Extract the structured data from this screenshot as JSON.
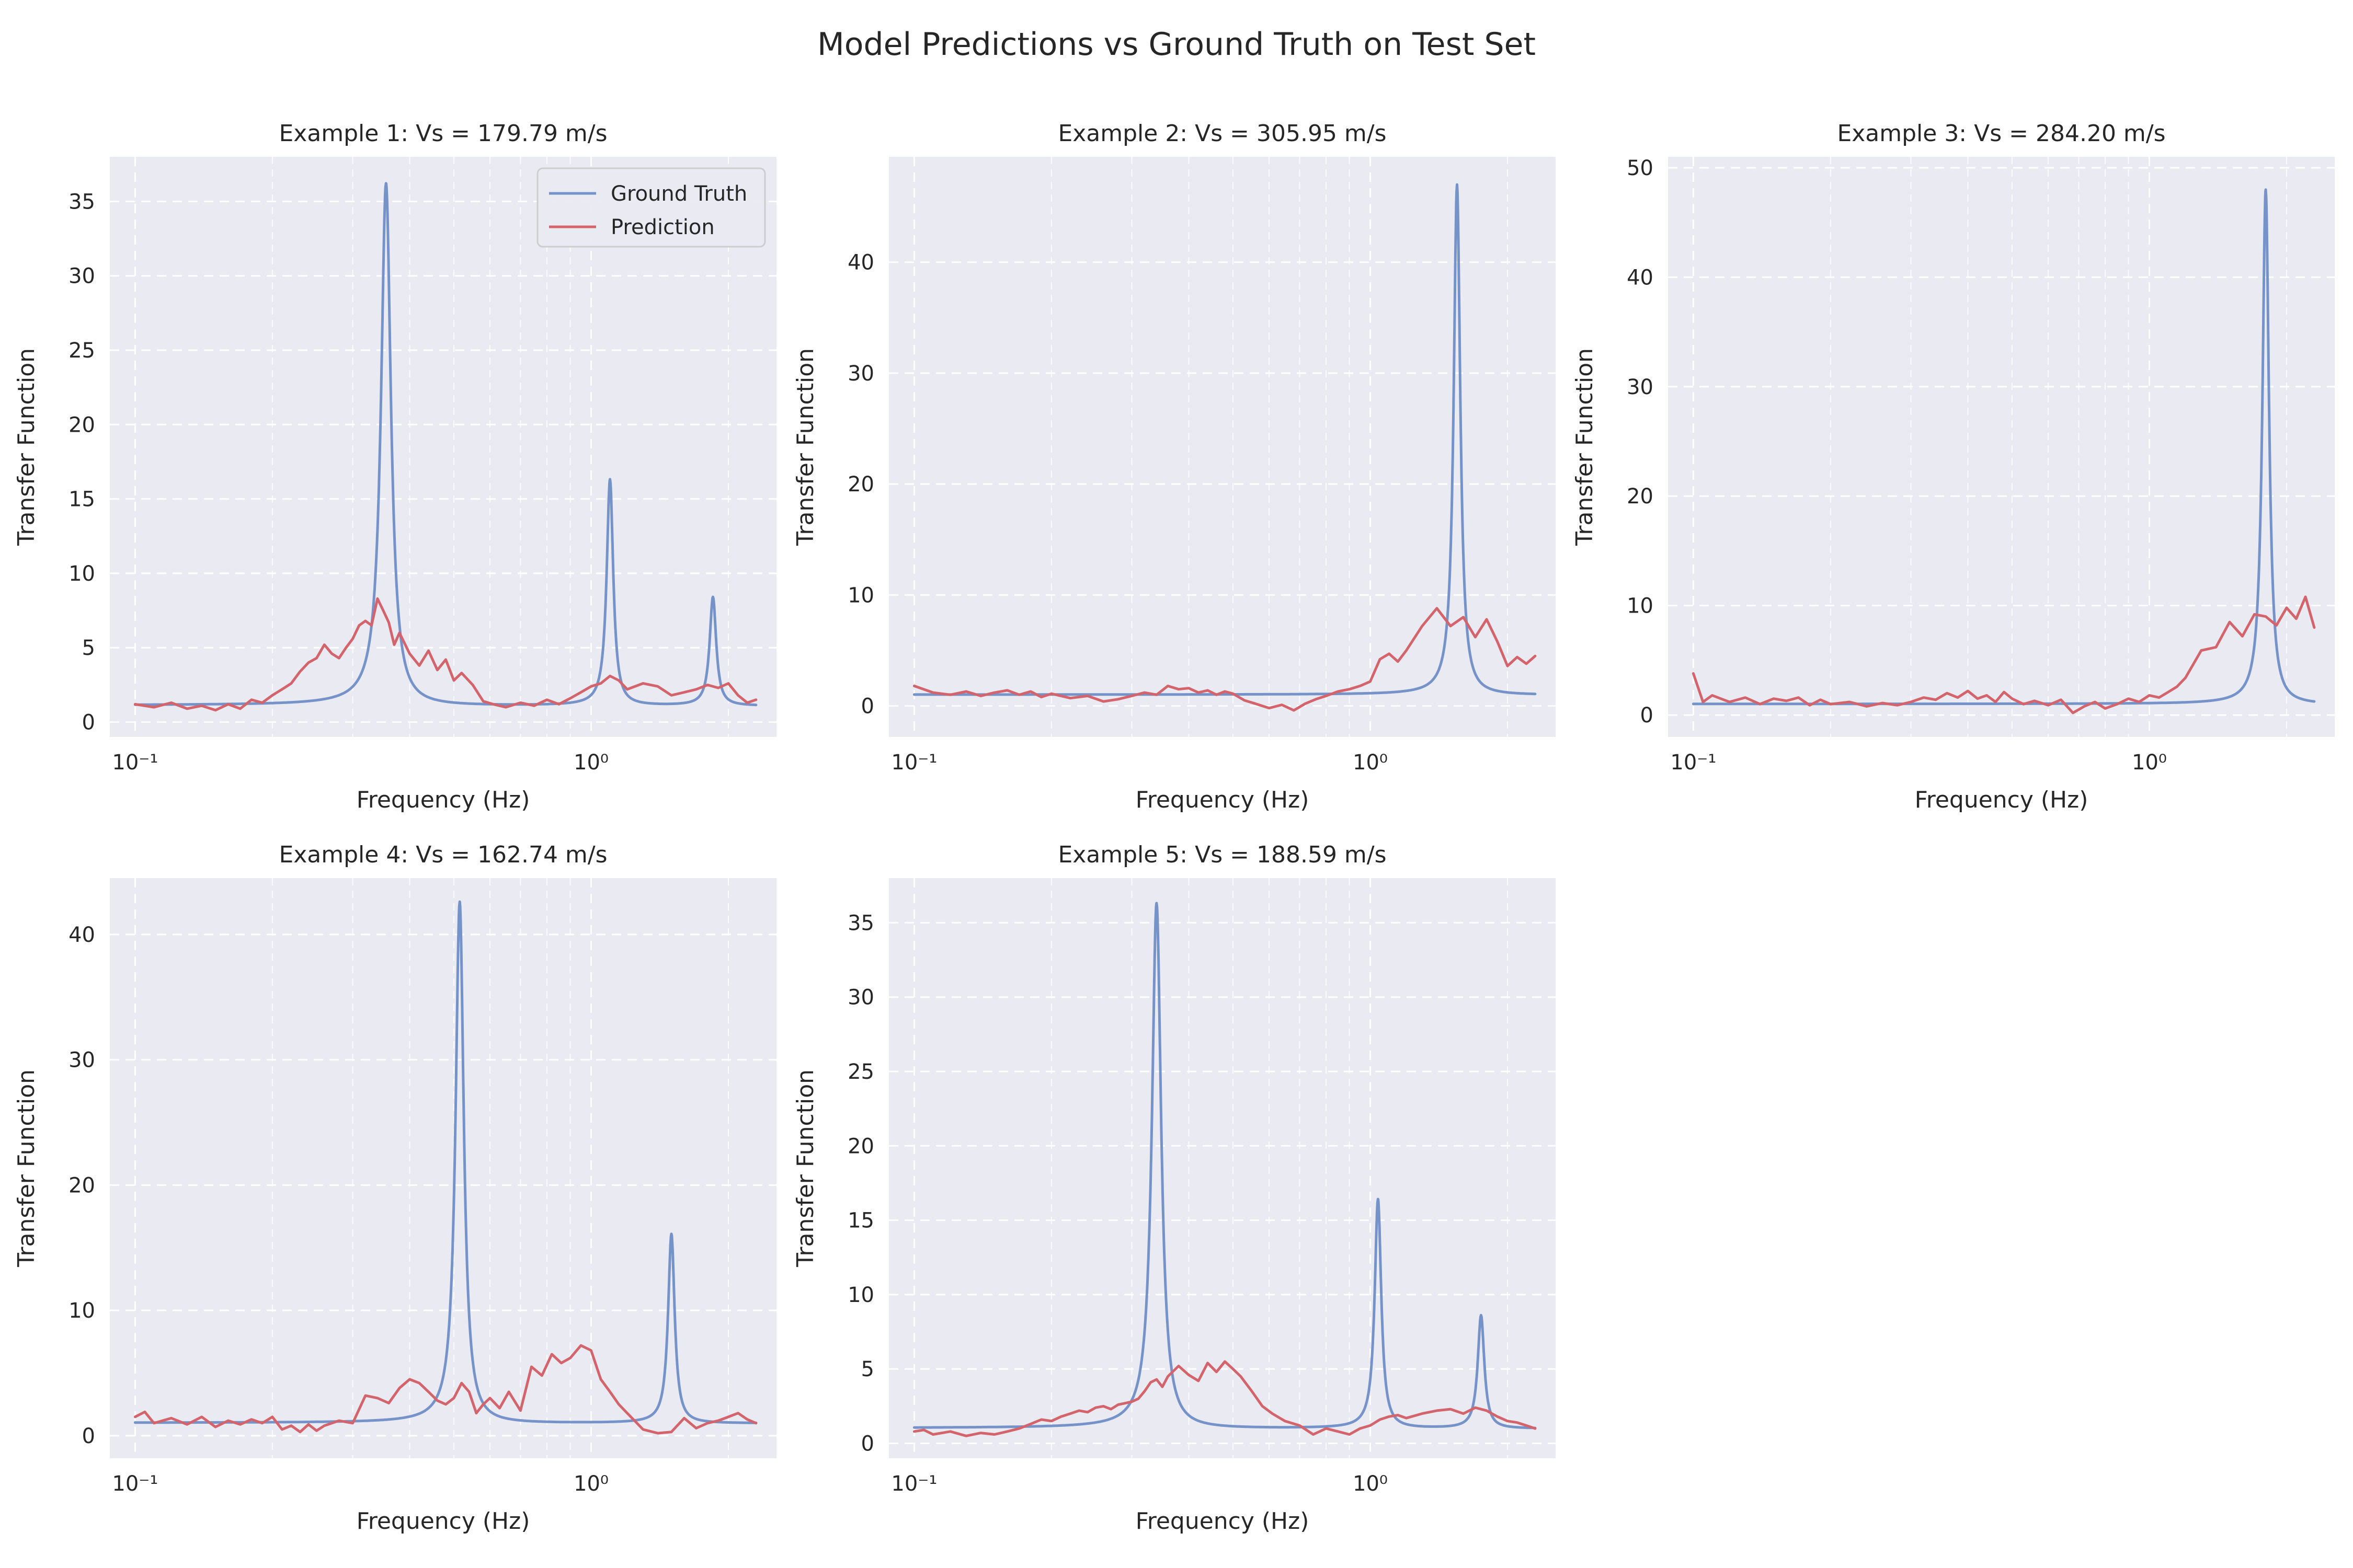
{
  "figure": {
    "suptitle": "Model Predictions vs Ground Truth on Test Set"
  },
  "colors": {
    "ground_truth": "#7593c8",
    "prediction": "#d3646c"
  },
  "chart_data": [
    {
      "type": "line",
      "title": "Example 1: Vs = 179.79 m/s",
      "xlabel": "Frequency (Hz)",
      "ylabel": "Transfer Function",
      "xscale": "log",
      "xlim": [
        0.088,
        2.55
      ],
      "ylim": [
        -1,
        38
      ],
      "yticks": [
        0,
        5,
        10,
        15,
        20,
        25,
        30,
        35
      ],
      "xticks": [
        0.1,
        1
      ],
      "xtick_labels": [
        "10⁻¹",
        "10⁰"
      ],
      "legend": "top-right",
      "series": [
        {
          "name": "Ground Truth",
          "peaks": [
            [
              0.355,
              36.2,
              0.03
            ],
            [
              1.1,
              16.3,
              0.02
            ],
            [
              1.85,
              8.4,
              0.02
            ]
          ],
          "base": 1.1
        },
        {
          "name": "Prediction",
          "x": [
            0.1,
            0.11,
            0.12,
            0.13,
            0.14,
            0.15,
            0.16,
            0.17,
            0.18,
            0.19,
            0.2,
            0.21,
            0.22,
            0.23,
            0.24,
            0.25,
            0.26,
            0.27,
            0.28,
            0.29,
            0.3,
            0.31,
            0.32,
            0.33,
            0.34,
            0.35,
            0.36,
            0.37,
            0.38,
            0.4,
            0.42,
            0.44,
            0.46,
            0.48,
            0.5,
            0.52,
            0.55,
            0.58,
            0.61,
            0.65,
            0.7,
            0.75,
            0.8,
            0.85,
            0.9,
            0.95,
            1.0,
            1.05,
            1.1,
            1.15,
            1.2,
            1.3,
            1.4,
            1.5,
            1.6,
            1.7,
            1.8,
            1.9,
            2.0,
            2.1,
            2.2,
            2.3
          ],
          "y": [
            1.2,
            1.0,
            1.3,
            0.9,
            1.1,
            0.8,
            1.2,
            0.9,
            1.5,
            1.3,
            1.8,
            2.2,
            2.6,
            3.4,
            4.0,
            4.3,
            5.2,
            4.6,
            4.3,
            5.0,
            5.6,
            6.5,
            6.8,
            6.5,
            8.3,
            7.5,
            6.7,
            5.2,
            6.0,
            4.6,
            3.8,
            4.8,
            3.5,
            4.2,
            2.8,
            3.3,
            2.5,
            1.4,
            1.2,
            1.0,
            1.3,
            1.1,
            1.5,
            1.2,
            1.6,
            2.0,
            2.4,
            2.6,
            3.1,
            2.8,
            2.2,
            2.6,
            2.4,
            1.8,
            2.0,
            2.2,
            2.5,
            2.3,
            2.6,
            1.8,
            1.3,
            1.5
          ]
        }
      ]
    },
    {
      "type": "line",
      "title": "Example 2: Vs = 305.95 m/s",
      "xlabel": "Frequency (Hz)",
      "ylabel": "Transfer Function",
      "xscale": "log",
      "xlim": [
        0.088,
        2.55
      ],
      "ylim": [
        -2.8,
        49.5
      ],
      "yticks": [
        0,
        10,
        20,
        30,
        40
      ],
      "xticks": [
        0.1,
        1
      ],
      "xtick_labels": [
        "10⁻¹",
        "10⁰"
      ],
      "series": [
        {
          "name": "Ground Truth",
          "peaks": [
            [
              1.55,
              47.0,
              0.02
            ]
          ],
          "base": 1.0
        },
        {
          "name": "Prediction",
          "x": [
            0.1,
            0.11,
            0.12,
            0.13,
            0.14,
            0.15,
            0.16,
            0.17,
            0.18,
            0.19,
            0.2,
            0.22,
            0.24,
            0.26,
            0.28,
            0.3,
            0.32,
            0.34,
            0.36,
            0.38,
            0.4,
            0.42,
            0.44,
            0.46,
            0.48,
            0.5,
            0.53,
            0.56,
            0.6,
            0.64,
            0.68,
            0.72,
            0.76,
            0.8,
            0.85,
            0.9,
            0.95,
            1.0,
            1.05,
            1.1,
            1.15,
            1.2,
            1.3,
            1.4,
            1.5,
            1.6,
            1.7,
            1.8,
            1.9,
            2.0,
            2.1,
            2.2,
            2.3
          ],
          "y": [
            1.8,
            1.2,
            1.0,
            1.3,
            0.9,
            1.2,
            1.4,
            1.0,
            1.3,
            0.8,
            1.1,
            0.7,
            0.9,
            0.4,
            0.6,
            0.9,
            1.2,
            1.0,
            1.8,
            1.5,
            1.6,
            1.2,
            1.4,
            1.0,
            1.3,
            1.1,
            0.5,
            0.2,
            -0.2,
            0.1,
            -0.4,
            0.2,
            0.6,
            0.9,
            1.3,
            1.5,
            1.8,
            2.2,
            4.2,
            4.7,
            4.0,
            5.0,
            7.2,
            8.8,
            7.2,
            8.0,
            6.2,
            7.8,
            5.8,
            3.6,
            4.4,
            3.8,
            4.5
          ]
        }
      ]
    },
    {
      "type": "line",
      "title": "Example 3: Vs = 284.20 m/s",
      "xlabel": "Frequency (Hz)",
      "ylabel": "Transfer Function",
      "xscale": "log",
      "xlim": [
        0.088,
        2.55
      ],
      "ylim": [
        -2,
        51
      ],
      "yticks": [
        0,
        10,
        20,
        30,
        40,
        50
      ],
      "xticks": [
        0.1,
        1
      ],
      "xtick_labels": [
        "10⁻¹",
        "10⁰"
      ],
      "series": [
        {
          "name": "Ground Truth",
          "peaks": [
            [
              1.8,
              48.0,
              0.02
            ]
          ],
          "base": 1.0
        },
        {
          "name": "Prediction",
          "x": [
            0.1,
            0.105,
            0.11,
            0.12,
            0.13,
            0.14,
            0.15,
            0.16,
            0.17,
            0.18,
            0.19,
            0.2,
            0.22,
            0.24,
            0.26,
            0.28,
            0.3,
            0.32,
            0.34,
            0.36,
            0.38,
            0.4,
            0.42,
            0.44,
            0.46,
            0.48,
            0.5,
            0.53,
            0.56,
            0.6,
            0.64,
            0.68,
            0.72,
            0.76,
            0.8,
            0.85,
            0.9,
            0.95,
            1.0,
            1.05,
            1.1,
            1.15,
            1.2,
            1.3,
            1.4,
            1.5,
            1.6,
            1.7,
            1.8,
            1.9,
            2.0,
            2.1,
            2.2,
            2.3
          ],
          "y": [
            3.8,
            1.2,
            1.8,
            1.2,
            1.6,
            1.0,
            1.5,
            1.3,
            1.6,
            0.9,
            1.4,
            1.0,
            1.2,
            0.8,
            1.1,
            0.9,
            1.2,
            1.6,
            1.4,
            2.0,
            1.6,
            2.2,
            1.5,
            1.8,
            1.2,
            2.1,
            1.5,
            1.0,
            1.3,
            0.9,
            1.4,
            0.2,
            0.8,
            1.2,
            0.6,
            1.0,
            1.5,
            1.2,
            1.8,
            1.6,
            2.1,
            2.6,
            3.4,
            5.9,
            6.2,
            8.5,
            7.2,
            9.2,
            9.0,
            8.2,
            9.8,
            8.8,
            10.8,
            8.0
          ]
        }
      ]
    },
    {
      "type": "line",
      "title": "Example 4: Vs = 162.74 m/s",
      "xlabel": "Frequency (Hz)",
      "ylabel": "Transfer Function",
      "xscale": "log",
      "xlim": [
        0.088,
        2.55
      ],
      "ylim": [
        -1.8,
        44.5
      ],
      "yticks": [
        0,
        10,
        20,
        30,
        40
      ],
      "xticks": [
        0.1,
        1
      ],
      "xtick_labels": [
        "10⁻¹",
        "10⁰"
      ],
      "series": [
        {
          "name": "Ground Truth",
          "peaks": [
            [
              0.515,
              42.6,
              0.025
            ],
            [
              1.5,
              16.1,
              0.02
            ]
          ],
          "base": 1.0
        },
        {
          "name": "Prediction",
          "x": [
            0.1,
            0.105,
            0.11,
            0.12,
            0.13,
            0.14,
            0.15,
            0.16,
            0.17,
            0.18,
            0.19,
            0.2,
            0.21,
            0.22,
            0.23,
            0.24,
            0.25,
            0.26,
            0.28,
            0.3,
            0.32,
            0.34,
            0.36,
            0.38,
            0.4,
            0.42,
            0.44,
            0.46,
            0.48,
            0.5,
            0.52,
            0.54,
            0.56,
            0.58,
            0.6,
            0.63,
            0.66,
            0.7,
            0.74,
            0.78,
            0.82,
            0.86,
            0.9,
            0.95,
            1.0,
            1.05,
            1.1,
            1.15,
            1.2,
            1.3,
            1.4,
            1.5,
            1.6,
            1.7,
            1.8,
            1.9,
            2.0,
            2.1,
            2.2,
            2.3
          ],
          "y": [
            1.5,
            1.9,
            1.0,
            1.4,
            0.9,
            1.5,
            0.7,
            1.2,
            0.9,
            1.3,
            1.0,
            1.5,
            0.5,
            0.8,
            0.3,
            0.9,
            0.4,
            0.8,
            1.2,
            1.0,
            3.2,
            3.0,
            2.6,
            3.8,
            4.5,
            4.2,
            3.5,
            2.8,
            2.5,
            3.0,
            4.2,
            3.5,
            1.8,
            2.5,
            3.0,
            2.2,
            3.5,
            2.0,
            5.5,
            4.8,
            6.5,
            5.8,
            6.2,
            7.2,
            6.8,
            4.5,
            3.5,
            2.5,
            1.8,
            0.5,
            0.2,
            0.3,
            1.4,
            0.6,
            1.0,
            1.2,
            1.5,
            1.8,
            1.3,
            1.0
          ]
        }
      ]
    },
    {
      "type": "line",
      "title": "Example 5: Vs = 188.59 m/s",
      "xlabel": "Frequency (Hz)",
      "ylabel": "Transfer Function",
      "xscale": "log",
      "xlim": [
        0.088,
        2.55
      ],
      "ylim": [
        -1,
        38
      ],
      "yticks": [
        0,
        5,
        10,
        15,
        20,
        25,
        30,
        35
      ],
      "xticks": [
        0.1,
        1
      ],
      "xtick_labels": [
        "10⁻¹",
        "10⁰"
      ],
      "series": [
        {
          "name": "Ground Truth",
          "peaks": [
            [
              0.34,
              36.3,
              0.028
            ],
            [
              1.04,
              16.4,
              0.02
            ],
            [
              1.75,
              8.6,
              0.02
            ]
          ],
          "base": 1.0
        },
        {
          "name": "Prediction",
          "x": [
            0.1,
            0.105,
            0.11,
            0.12,
            0.13,
            0.14,
            0.15,
            0.16,
            0.17,
            0.18,
            0.19,
            0.2,
            0.21,
            0.22,
            0.23,
            0.24,
            0.25,
            0.26,
            0.27,
            0.28,
            0.29,
            0.3,
            0.31,
            0.32,
            0.33,
            0.34,
            0.35,
            0.36,
            0.38,
            0.4,
            0.42,
            0.44,
            0.46,
            0.48,
            0.5,
            0.52,
            0.55,
            0.58,
            0.61,
            0.65,
            0.7,
            0.75,
            0.8,
            0.85,
            0.9,
            0.95,
            1.0,
            1.05,
            1.1,
            1.15,
            1.2,
            1.3,
            1.4,
            1.5,
            1.6,
            1.7,
            1.8,
            1.9,
            2.0,
            2.1,
            2.2,
            2.3
          ],
          "y": [
            0.8,
            0.9,
            0.6,
            0.8,
            0.5,
            0.7,
            0.6,
            0.8,
            1.0,
            1.3,
            1.6,
            1.5,
            1.8,
            2.0,
            2.2,
            2.1,
            2.4,
            2.5,
            2.3,
            2.6,
            2.7,
            2.8,
            3.0,
            3.5,
            4.1,
            4.3,
            3.8,
            4.5,
            5.2,
            4.6,
            4.2,
            5.4,
            4.8,
            5.5,
            5.0,
            4.5,
            3.5,
            2.5,
            2.0,
            1.5,
            1.2,
            0.6,
            1.0,
            0.8,
            0.6,
            1.0,
            1.2,
            1.6,
            1.8,
            1.9,
            1.7,
            2.0,
            2.2,
            2.3,
            2.0,
            2.4,
            2.2,
            1.8,
            1.5,
            1.4,
            1.2,
            1.0
          ]
        }
      ]
    }
  ]
}
